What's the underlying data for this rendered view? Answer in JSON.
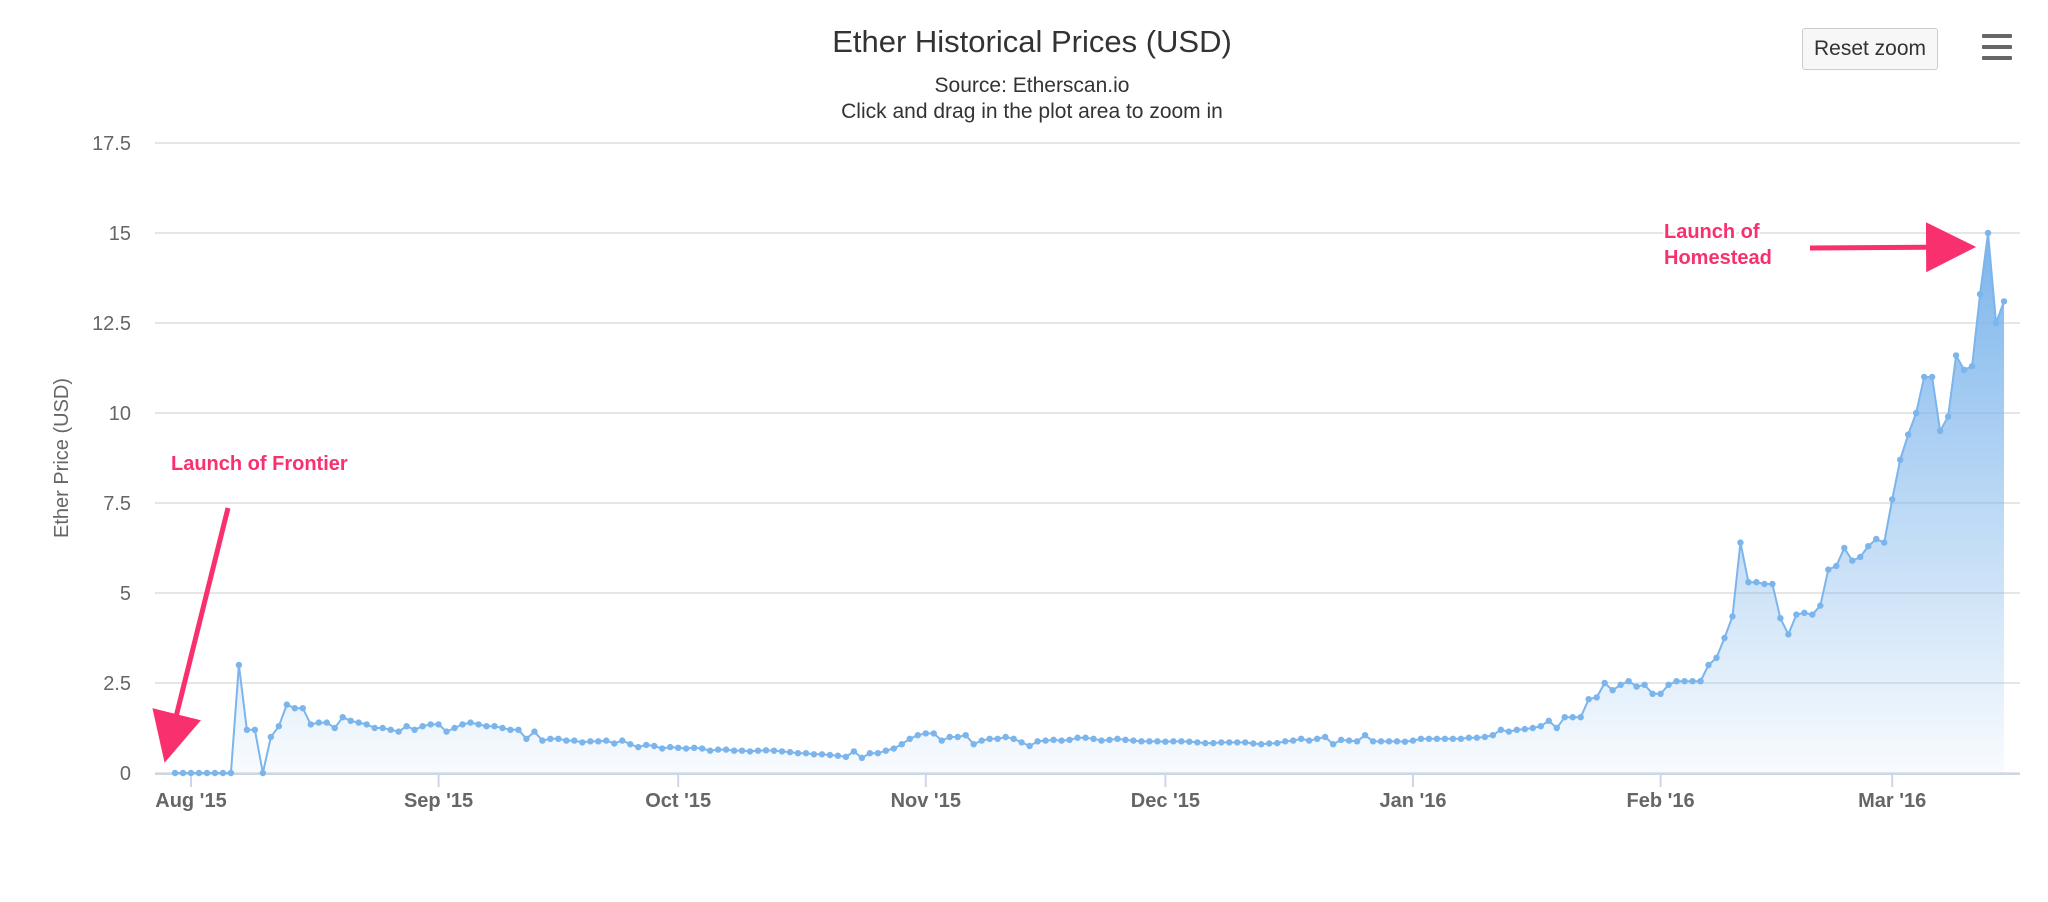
{
  "chart_data": {
    "type": "area",
    "title": "Ether Historical Prices (USD)",
    "subtitle": "Source: Etherscan.io",
    "subtitle2": "Click and drag in the plot area to zoom in",
    "ylabel": "Ether Price (USD)",
    "xlabel": "",
    "ylim": [
      0,
      17.5
    ],
    "yticks": [
      0,
      2.5,
      5,
      7.5,
      10,
      12.5,
      15,
      17.5
    ],
    "ytick_labels": [
      "0",
      "2.5",
      "5",
      "7.5",
      "10",
      "12.5",
      "15",
      "17.5"
    ],
    "xlim": [
      "2015-07-30",
      "2016-03-17"
    ],
    "xticks": [
      "2015-08-01",
      "2015-09-01",
      "2015-10-01",
      "2015-11-01",
      "2015-12-01",
      "2016-01-01",
      "2016-02-01",
      "2016-03-01"
    ],
    "xtick_labels": [
      "Aug '15",
      "Sep '15",
      "Oct '15",
      "Nov '15",
      "Dec '15",
      "Jan '16",
      "Feb '16",
      "Mar '16"
    ],
    "grid": true,
    "legend": false,
    "series": [
      {
        "color": "#7cb5ec",
        "points": [
          [
            "2015-07-30",
            0
          ],
          [
            "2015-07-31",
            0
          ],
          [
            "2015-08-01",
            0
          ],
          [
            "2015-08-02",
            0
          ],
          [
            "2015-08-03",
            0
          ],
          [
            "2015-08-04",
            0
          ],
          [
            "2015-08-05",
            0
          ],
          [
            "2015-08-06",
            0
          ],
          [
            "2015-08-07",
            3.0
          ],
          [
            "2015-08-08",
            1.2
          ],
          [
            "2015-08-09",
            1.2
          ],
          [
            "2015-08-10",
            0
          ],
          [
            "2015-08-11",
            1.0
          ],
          [
            "2015-08-12",
            1.3
          ],
          [
            "2015-08-13",
            1.9
          ],
          [
            "2015-08-14",
            1.8
          ],
          [
            "2015-08-15",
            1.8
          ],
          [
            "2015-08-16",
            1.35
          ],
          [
            "2015-08-17",
            1.4
          ],
          [
            "2015-08-18",
            1.4
          ],
          [
            "2015-08-19",
            1.25
          ],
          [
            "2015-08-20",
            1.55
          ],
          [
            "2015-08-21",
            1.45
          ],
          [
            "2015-08-22",
            1.4
          ],
          [
            "2015-08-23",
            1.35
          ],
          [
            "2015-08-24",
            1.25
          ],
          [
            "2015-08-25",
            1.25
          ],
          [
            "2015-08-26",
            1.2
          ],
          [
            "2015-08-27",
            1.15
          ],
          [
            "2015-08-28",
            1.3
          ],
          [
            "2015-08-29",
            1.2
          ],
          [
            "2015-08-30",
            1.3
          ],
          [
            "2015-08-31",
            1.35
          ],
          [
            "2015-09-01",
            1.35
          ],
          [
            "2015-09-02",
            1.15
          ],
          [
            "2015-09-03",
            1.25
          ],
          [
            "2015-09-04",
            1.35
          ],
          [
            "2015-09-05",
            1.4
          ],
          [
            "2015-09-06",
            1.35
          ],
          [
            "2015-09-07",
            1.3
          ],
          [
            "2015-09-08",
            1.3
          ],
          [
            "2015-09-09",
            1.25
          ],
          [
            "2015-09-10",
            1.2
          ],
          [
            "2015-09-11",
            1.2
          ],
          [
            "2015-09-12",
            0.95
          ],
          [
            "2015-09-13",
            1.15
          ],
          [
            "2015-09-14",
            0.9
          ],
          [
            "2015-09-15",
            0.95
          ],
          [
            "2015-09-16",
            0.95
          ],
          [
            "2015-09-17",
            0.9
          ],
          [
            "2015-09-18",
            0.9
          ],
          [
            "2015-09-19",
            0.85
          ],
          [
            "2015-09-20",
            0.88
          ],
          [
            "2015-09-21",
            0.88
          ],
          [
            "2015-09-22",
            0.9
          ],
          [
            "2015-09-23",
            0.82
          ],
          [
            "2015-09-24",
            0.9
          ],
          [
            "2015-09-25",
            0.8
          ],
          [
            "2015-09-26",
            0.72
          ],
          [
            "2015-09-27",
            0.78
          ],
          [
            "2015-09-28",
            0.75
          ],
          [
            "2015-09-29",
            0.68
          ],
          [
            "2015-09-30",
            0.72
          ],
          [
            "2015-10-01",
            0.7
          ],
          [
            "2015-10-02",
            0.68
          ],
          [
            "2015-10-03",
            0.7
          ],
          [
            "2015-10-04",
            0.68
          ],
          [
            "2015-10-05",
            0.62
          ],
          [
            "2015-10-06",
            0.65
          ],
          [
            "2015-10-07",
            0.65
          ],
          [
            "2015-10-08",
            0.62
          ],
          [
            "2015-10-09",
            0.62
          ],
          [
            "2015-10-10",
            0.6
          ],
          [
            "2015-10-11",
            0.62
          ],
          [
            "2015-10-12",
            0.63
          ],
          [
            "2015-10-13",
            0.62
          ],
          [
            "2015-10-14",
            0.6
          ],
          [
            "2015-10-15",
            0.58
          ],
          [
            "2015-10-16",
            0.55
          ],
          [
            "2015-10-17",
            0.55
          ],
          [
            "2015-10-18",
            0.52
          ],
          [
            "2015-10-19",
            0.52
          ],
          [
            "2015-10-20",
            0.5
          ],
          [
            "2015-10-21",
            0.48
          ],
          [
            "2015-10-22",
            0.45
          ],
          [
            "2015-10-23",
            0.6
          ],
          [
            "2015-10-24",
            0.42
          ],
          [
            "2015-10-25",
            0.55
          ],
          [
            "2015-10-26",
            0.55
          ],
          [
            "2015-10-27",
            0.62
          ],
          [
            "2015-10-28",
            0.68
          ],
          [
            "2015-10-29",
            0.8
          ],
          [
            "2015-10-30",
            0.95
          ],
          [
            "2015-10-31",
            1.05
          ],
          [
            "2015-11-01",
            1.1
          ],
          [
            "2015-11-02",
            1.1
          ],
          [
            "2015-11-03",
            0.9
          ],
          [
            "2015-11-04",
            1.0
          ],
          [
            "2015-11-05",
            1.0
          ],
          [
            "2015-11-06",
            1.05
          ],
          [
            "2015-11-07",
            0.8
          ],
          [
            "2015-11-08",
            0.9
          ],
          [
            "2015-11-09",
            0.95
          ],
          [
            "2015-11-10",
            0.95
          ],
          [
            "2015-11-11",
            1.0
          ],
          [
            "2015-11-12",
            0.95
          ],
          [
            "2015-11-13",
            0.85
          ],
          [
            "2015-11-14",
            0.75
          ],
          [
            "2015-11-15",
            0.88
          ],
          [
            "2015-11-16",
            0.9
          ],
          [
            "2015-11-17",
            0.92
          ],
          [
            "2015-11-18",
            0.9
          ],
          [
            "2015-11-19",
            0.92
          ],
          [
            "2015-11-20",
            0.98
          ],
          [
            "2015-11-21",
            0.98
          ],
          [
            "2015-11-22",
            0.95
          ],
          [
            "2015-11-23",
            0.9
          ],
          [
            "2015-11-24",
            0.92
          ],
          [
            "2015-11-25",
            0.95
          ],
          [
            "2015-11-26",
            0.92
          ],
          [
            "2015-11-27",
            0.9
          ],
          [
            "2015-11-28",
            0.88
          ],
          [
            "2015-11-29",
            0.88
          ],
          [
            "2015-11-30",
            0.88
          ],
          [
            "2015-12-01",
            0.87
          ],
          [
            "2015-12-02",
            0.88
          ],
          [
            "2015-12-03",
            0.88
          ],
          [
            "2015-12-04",
            0.87
          ],
          [
            "2015-12-05",
            0.85
          ],
          [
            "2015-12-06",
            0.83
          ],
          [
            "2015-12-07",
            0.83
          ],
          [
            "2015-12-08",
            0.85
          ],
          [
            "2015-12-09",
            0.85
          ],
          [
            "2015-12-10",
            0.85
          ],
          [
            "2015-12-11",
            0.85
          ],
          [
            "2015-12-12",
            0.82
          ],
          [
            "2015-12-13",
            0.8
          ],
          [
            "2015-12-14",
            0.82
          ],
          [
            "2015-12-15",
            0.83
          ],
          [
            "2015-12-16",
            0.88
          ],
          [
            "2015-12-17",
            0.9
          ],
          [
            "2015-12-18",
            0.95
          ],
          [
            "2015-12-19",
            0.9
          ],
          [
            "2015-12-20",
            0.95
          ],
          [
            "2015-12-21",
            1.0
          ],
          [
            "2015-12-22",
            0.8
          ],
          [
            "2015-12-23",
            0.92
          ],
          [
            "2015-12-24",
            0.9
          ],
          [
            "2015-12-25",
            0.88
          ],
          [
            "2015-12-26",
            1.05
          ],
          [
            "2015-12-27",
            0.88
          ],
          [
            "2015-12-28",
            0.88
          ],
          [
            "2015-12-29",
            0.88
          ],
          [
            "2015-12-30",
            0.88
          ],
          [
            "2015-12-31",
            0.87
          ],
          [
            "2016-01-01",
            0.9
          ],
          [
            "2016-01-02",
            0.95
          ],
          [
            "2016-01-03",
            0.95
          ],
          [
            "2016-01-04",
            0.95
          ],
          [
            "2016-01-05",
            0.95
          ],
          [
            "2016-01-06",
            0.95
          ],
          [
            "2016-01-07",
            0.95
          ],
          [
            "2016-01-08",
            0.98
          ],
          [
            "2016-01-09",
            0.98
          ],
          [
            "2016-01-10",
            1.0
          ],
          [
            "2016-01-11",
            1.05
          ],
          [
            "2016-01-12",
            1.2
          ],
          [
            "2016-01-13",
            1.15
          ],
          [
            "2016-01-14",
            1.2
          ],
          [
            "2016-01-15",
            1.22
          ],
          [
            "2016-01-16",
            1.25
          ],
          [
            "2016-01-17",
            1.3
          ],
          [
            "2016-01-18",
            1.45
          ],
          [
            "2016-01-19",
            1.25
          ],
          [
            "2016-01-20",
            1.55
          ],
          [
            "2016-01-21",
            1.55
          ],
          [
            "2016-01-22",
            1.55
          ],
          [
            "2016-01-23",
            2.05
          ],
          [
            "2016-01-24",
            2.1
          ],
          [
            "2016-01-25",
            2.5
          ],
          [
            "2016-01-26",
            2.3
          ],
          [
            "2016-01-27",
            2.45
          ],
          [
            "2016-01-28",
            2.55
          ],
          [
            "2016-01-29",
            2.4
          ],
          [
            "2016-01-30",
            2.45
          ],
          [
            "2016-01-31",
            2.2
          ],
          [
            "2016-02-01",
            2.2
          ],
          [
            "2016-02-02",
            2.45
          ],
          [
            "2016-02-03",
            2.55
          ],
          [
            "2016-02-04",
            2.55
          ],
          [
            "2016-02-05",
            2.55
          ],
          [
            "2016-02-06",
            2.55
          ],
          [
            "2016-02-07",
            3.0
          ],
          [
            "2016-02-08",
            3.2
          ],
          [
            "2016-02-09",
            3.75
          ],
          [
            "2016-02-10",
            4.35
          ],
          [
            "2016-02-11",
            6.4
          ],
          [
            "2016-02-12",
            5.3
          ],
          [
            "2016-02-13",
            5.3
          ],
          [
            "2016-02-14",
            5.25
          ],
          [
            "2016-02-15",
            5.25
          ],
          [
            "2016-02-16",
            4.3
          ],
          [
            "2016-02-17",
            3.85
          ],
          [
            "2016-02-18",
            4.4
          ],
          [
            "2016-02-19",
            4.45
          ],
          [
            "2016-02-20",
            4.4
          ],
          [
            "2016-02-21",
            4.65
          ],
          [
            "2016-02-22",
            5.65
          ],
          [
            "2016-02-23",
            5.75
          ],
          [
            "2016-02-24",
            6.25
          ],
          [
            "2016-02-25",
            5.9
          ],
          [
            "2016-02-26",
            6.0
          ],
          [
            "2016-02-27",
            6.3
          ],
          [
            "2016-02-28",
            6.5
          ],
          [
            "2016-02-29",
            6.4
          ],
          [
            "2016-03-01",
            7.6
          ],
          [
            "2016-03-02",
            8.7
          ],
          [
            "2016-03-03",
            9.4
          ],
          [
            "2016-03-04",
            10.0
          ],
          [
            "2016-03-05",
            11.0
          ],
          [
            "2016-03-06",
            11.0
          ],
          [
            "2016-03-07",
            9.5
          ],
          [
            "2016-03-08",
            9.9
          ],
          [
            "2016-03-09",
            11.6
          ],
          [
            "2016-03-10",
            11.2
          ],
          [
            "2016-03-11",
            11.3
          ],
          [
            "2016-03-12",
            13.3
          ],
          [
            "2016-03-13",
            15.0
          ],
          [
            "2016-03-14",
            12.5
          ],
          [
            "2016-03-15",
            13.1
          ]
        ]
      }
    ],
    "annotations": [
      {
        "text_lines": [
          "Launch of Frontier"
        ],
        "target": [
          "2015-07-30",
          0
        ]
      },
      {
        "text_lines": [
          "Launch of",
          "Homestead"
        ],
        "target": [
          "2016-03-13",
          15.0
        ]
      }
    ],
    "annotation_color": "#f9306e"
  },
  "toolbar": {
    "reset_zoom_label": "Reset zoom",
    "menu_icon": "hamburger-menu-icon"
  },
  "colors": {
    "line": "#7cb5ec",
    "grid": "#e6e6e6",
    "axis_text": "#666666",
    "title_text": "#333333",
    "annotation": "#f9306e"
  }
}
